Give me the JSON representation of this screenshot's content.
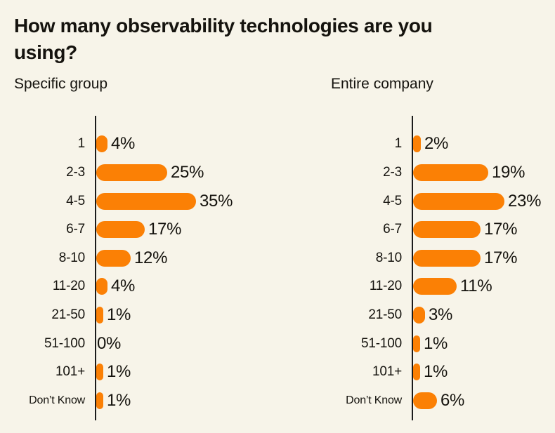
{
  "page": {
    "title": "How many observability technologies are you using?"
  },
  "colors": {
    "background": "#f7f4e9",
    "bar": "#fb8005",
    "axis": "#1b1b1b",
    "text": "#15130e"
  },
  "chart_data": [
    {
      "type": "bar",
      "orientation": "horizontal",
      "title": "Specific group",
      "unit": "%",
      "categories": [
        "1",
        "2-3",
        "4-5",
        "6-7",
        "8-10",
        "11-20",
        "21-50",
        "51-100",
        "101+",
        "Don’t Know"
      ],
      "values": [
        4,
        25,
        35,
        17,
        12,
        4,
        1,
        0,
        1,
        1
      ],
      "value_labels": [
        "4%",
        "25%",
        "35%",
        "17%",
        "12%",
        "4%",
        "1%",
        "0%",
        "1%",
        "1%"
      ],
      "xlim": [
        0,
        35
      ],
      "grid": false,
      "legend": false
    },
    {
      "type": "bar",
      "orientation": "horizontal",
      "title": "Entire company",
      "unit": "%",
      "categories": [
        "1",
        "2-3",
        "4-5",
        "6-7",
        "8-10",
        "11-20",
        "21-50",
        "51-100",
        "101+",
        "Don’t Know"
      ],
      "values": [
        2,
        19,
        23,
        17,
        17,
        11,
        3,
        1,
        1,
        6
      ],
      "value_labels": [
        "2%",
        "19%",
        "23%",
        "17%",
        "17%",
        "11%",
        "3%",
        "1%",
        "1%",
        "6%"
      ],
      "xlim": [
        0,
        23
      ],
      "grid": false,
      "legend": false
    }
  ]
}
